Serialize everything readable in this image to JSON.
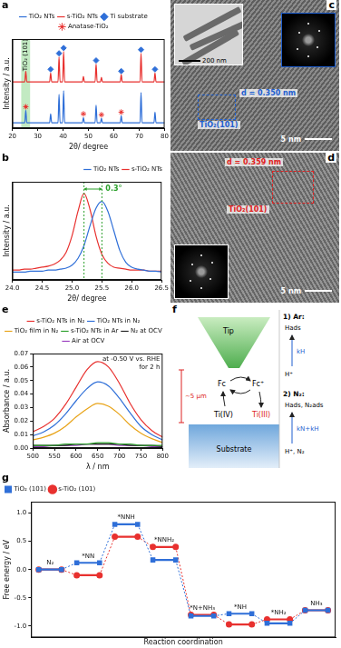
{
  "chart_data": [
    {
      "panel": "a",
      "type": "line",
      "x_label": "2θ/ degree",
      "y_label": "Intensity / a.u.",
      "x": [
        20,
        24.9,
        25.3,
        25.7,
        34.7,
        35.1,
        35.5,
        38.0,
        38.4,
        38.8,
        39.8,
        40.2,
        40.6,
        47.6,
        48.0,
        48.4,
        52.6,
        53.0,
        53.4,
        54.7,
        55.1,
        55.5,
        62.5,
        62.9,
        63.3,
        70.3,
        70.7,
        71.1,
        75.8,
        76.2,
        76.6,
        80
      ],
      "xlim": [
        20,
        80
      ],
      "xticks": [
        20,
        30,
        40,
        50,
        60,
        70,
        80
      ],
      "ylim": [
        0,
        100
      ],
      "tick_labels": "x",
      "grid": false,
      "legend": "top",
      "series": [
        {
          "name": "TiO₂ NTs",
          "color": "#2f6fd8",
          "values": [
            6,
            6,
            20,
            6,
            6,
            16,
            6,
            6,
            38,
            6,
            6,
            42,
            6,
            6,
            12,
            6,
            6,
            26,
            6,
            6,
            11,
            6,
            6,
            14,
            6,
            6,
            40,
            6,
            6,
            18,
            6,
            6
          ]
        },
        {
          "name": "s-TiO₂ NTs",
          "color": "#e8312f",
          "values": [
            52,
            52,
            64,
            52,
            52,
            62,
            52,
            52,
            80,
            52,
            52,
            86,
            52,
            52,
            58,
            52,
            52,
            72,
            52,
            52,
            57,
            52,
            52,
            60,
            52,
            52,
            84,
            52,
            52,
            62,
            52,
            52
          ]
        },
        {
          "name": "Ti substrate",
          "color": "#2f6fd8",
          "type": "scatter",
          "marker": "diamond",
          "x": [
            35.1,
            38.4,
            40.2,
            53.0,
            62.9,
            70.7,
            76.2
          ],
          "values": [
            66,
            84,
            90,
            76,
            64,
            88,
            66
          ]
        },
        {
          "name": "Anatase-TiO₂",
          "color": "#e8312f",
          "type": "scatter",
          "marker": "star",
          "x": [
            25.3,
            48.0,
            55.1,
            62.9
          ],
          "values": [
            24,
            16,
            15,
            18
          ]
        }
      ],
      "highlight": {
        "range": [
          23.5,
          27
        ],
        "label": "TiO₂ (101)",
        "color": "#8fd98f"
      }
    },
    {
      "panel": "b",
      "type": "line",
      "x_label": "2θ/ degree",
      "y_label": "Intensity / a.u.",
      "x": [
        24.0,
        24.1,
        24.2,
        24.3,
        24.4,
        24.5,
        24.6,
        24.7,
        24.8,
        24.9,
        25.0,
        25.1,
        25.2,
        25.3,
        25.4,
        25.5,
        25.6,
        25.7,
        25.8,
        25.9,
        26.0,
        26.1,
        26.2,
        26.3,
        26.4,
        26.5
      ],
      "xlim": [
        24,
        26.5
      ],
      "xticks": [
        {
          "value": 24,
          "label": "24.0"
        },
        24.5,
        {
          "value": 25,
          "label": "25.0"
        },
        25.5,
        {
          "value": 26,
          "label": "26.0"
        },
        26.5
      ],
      "ylim": [
        0,
        100
      ],
      "tick_labels": "x",
      "grid": false,
      "legend": "upper right",
      "series": [
        {
          "name": "TiO₂ NTs",
          "color": "#2f6fd8",
          "values": [
            8,
            8,
            8,
            9,
            9,
            9,
            10,
            10,
            11,
            12,
            15,
            22,
            35,
            55,
            73,
            80,
            70,
            50,
            30,
            18,
            13,
            11,
            10,
            9,
            9,
            8
          ]
        },
        {
          "name": "s-TiO₂ NTs",
          "color": "#e8312f",
          "values": [
            10,
            10,
            11,
            11,
            12,
            13,
            14,
            16,
            20,
            28,
            45,
            70,
            88,
            72,
            45,
            26,
            17,
            13,
            12,
            11,
            10,
            10,
            10,
            9,
            9,
            9
          ]
        }
      ],
      "shift": {
        "x": [
          25.2,
          25.5
        ],
        "label": "0.3°",
        "color": "#2ca02c"
      }
    },
    {
      "panel": "e",
      "type": "line",
      "x_label": "λ / nm",
      "y_label": "Absorbance / a.u.",
      "x": [
        500,
        525,
        550,
        575,
        600,
        625,
        650,
        675,
        700,
        725,
        750,
        775,
        800
      ],
      "xlim": [
        500,
        800
      ],
      "xticks": [
        500,
        550,
        600,
        650,
        700,
        750,
        800
      ],
      "ylim": [
        0,
        0.07
      ],
      "yticks": [
        {
          "value": 0,
          "label": "0.00"
        },
        0.01,
        0.02,
        0.03,
        0.04,
        0.05,
        0.06,
        0.07
      ],
      "grid": false,
      "legend": "top",
      "series": [
        {
          "name": "s-TiO₂ NTs in N₂",
          "color": "#e8312f",
          "values": [
            0.012,
            0.016,
            0.022,
            0.032,
            0.045,
            0.058,
            0.064,
            0.06,
            0.048,
            0.033,
            0.021,
            0.013,
            0.008
          ]
        },
        {
          "name": "TiO₂ NTs in N₂",
          "color": "#2f6fd8",
          "values": [
            0.009,
            0.012,
            0.017,
            0.025,
            0.035,
            0.044,
            0.049,
            0.046,
            0.037,
            0.026,
            0.016,
            0.01,
            0.006
          ]
        },
        {
          "name": "TiO₂ film in N₂",
          "color": "#e8a317",
          "values": [
            0.006,
            0.008,
            0.011,
            0.016,
            0.023,
            0.029,
            0.033,
            0.031,
            0.025,
            0.017,
            0.011,
            0.007,
            0.004
          ]
        },
        {
          "name": "s-TiO₂ NTs in Ar",
          "color": "#2ca02c",
          "values": [
            0.002,
            0.002,
            0.002,
            0.003,
            0.003,
            0.003,
            0.004,
            0.004,
            0.003,
            0.003,
            0.002,
            0.002,
            0.002
          ]
        },
        {
          "name": "N₂ at OCV",
          "color": "#222222",
          "values": [
            0.002,
            0.002,
            0.002,
            0.002,
            0.003,
            0.003,
            0.003,
            0.003,
            0.003,
            0.002,
            0.002,
            0.002,
            0.001
          ]
        },
        {
          "name": "Air at OCV",
          "color": "#9b3fbf",
          "values": [
            0.001,
            0.001,
            0.002,
            0.002,
            0.002,
            0.003,
            0.003,
            0.003,
            0.002,
            0.002,
            0.002,
            0.001,
            0.001
          ]
        }
      ],
      "annotation": [
        "at -0.50 V vs. RHE",
        "for 2 h"
      ]
    },
    {
      "panel": "g",
      "type": "energy",
      "x_label": "Reaction coordination",
      "y_label": "Free energy / eV",
      "categories": [
        "N₂",
        "*NN",
        "*NNH",
        "*NNH₂",
        "*N+NH₃",
        "*NH",
        "*NH₂",
        "NH₃"
      ],
      "ylim": [
        -1.2,
        1.2
      ],
      "yticks": [
        {
          "value": -1,
          "label": "-1.0"
        },
        -0.5,
        {
          "value": 0,
          "label": "0.0"
        },
        0.5,
        {
          "value": 1,
          "label": "1.0"
        }
      ],
      "tick_labels": "y",
      "grid": false,
      "legend": "top-left",
      "series": [
        {
          "name": "TiO₂ (101)",
          "color": "#2f6fd8",
          "marker": "square",
          "values": [
            0,
            0.12,
            0.8,
            0.17,
            -0.82,
            -0.78,
            -0.95,
            -0.72
          ]
        },
        {
          "name": "s-TiO₂ (101)",
          "color": "#e8312f",
          "marker": "circle",
          "values": [
            0,
            -0.1,
            0.58,
            0.4,
            -0.8,
            -0.97,
            -0.88,
            -0.72
          ]
        }
      ]
    }
  ],
  "images": [
    {
      "panel": "c",
      "scale_bars": [
        "200 nm",
        "5 nm"
      ],
      "d_spacing": "d = 0.350 nm",
      "plane": "TiO₂(101)",
      "color": "#1f5fd0"
    },
    {
      "panel": "d",
      "scale_bars": [
        "5 nm"
      ],
      "d_spacing": "d = 0.359 nm",
      "plane": "TiO₂(101)",
      "color": "#e02020"
    }
  ],
  "schematic": {
    "panel": "f",
    "tip": "Tip",
    "substrate": "Substrate",
    "gap": "~5 μm",
    "mediator": [
      "Fc",
      "Fc⁺"
    ],
    "titanium": [
      "Ti(IV)",
      "Ti(III)"
    ],
    "steps": [
      {
        "title": "1) Ar:",
        "reactant": "H⁺",
        "product": "Hads",
        "rate": "kH"
      },
      {
        "title": "2) N₂:",
        "reactant": "H⁺, N₂",
        "product": "Hads, N₂ads",
        "rate": "kN+kH"
      }
    ]
  }
}
